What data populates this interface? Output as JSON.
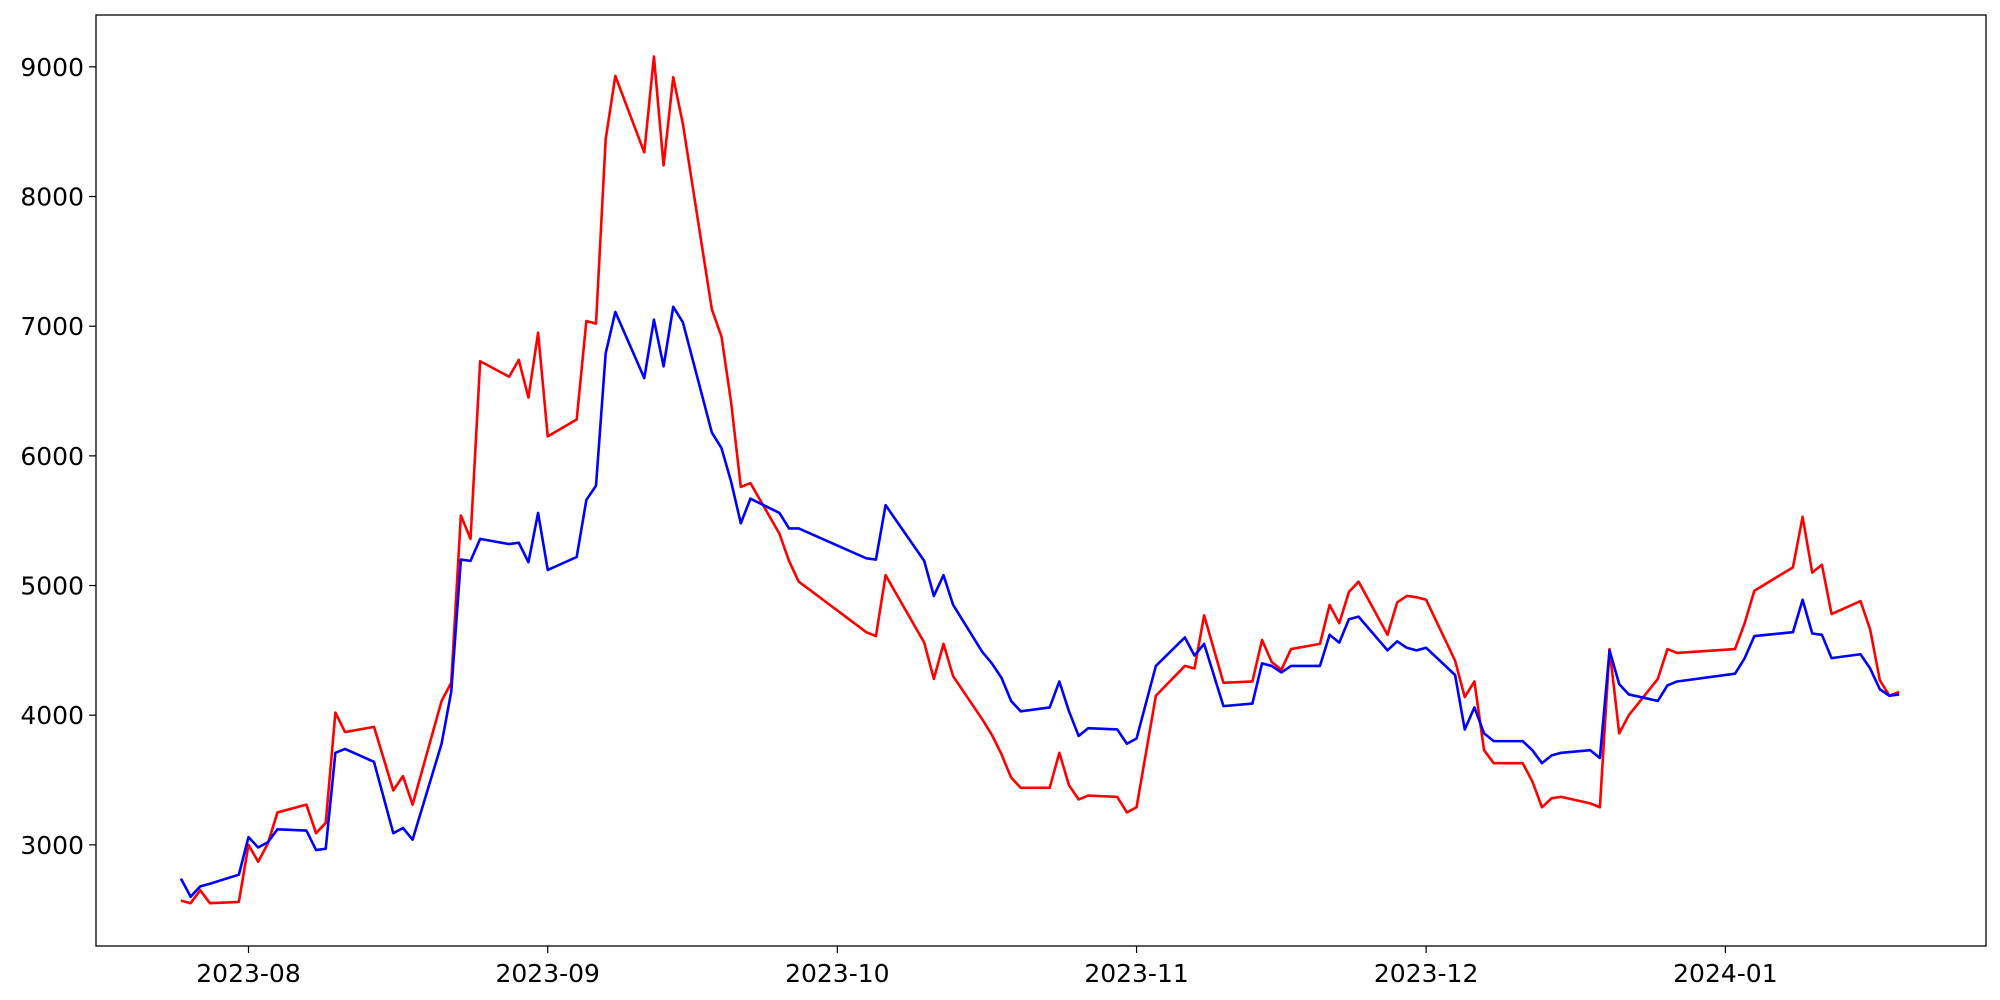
{
  "chart_data": {
    "type": "line",
    "x": [
      19563,
      19564,
      19565,
      19566,
      19569,
      19570,
      19571,
      19572,
      19573,
      19576,
      19577,
      19578,
      19579,
      19580,
      19583,
      19585,
      19586,
      19587,
      19590,
      19591,
      19592,
      19593,
      19594,
      19597,
      19598,
      19599,
      19600,
      19601,
      19604,
      19605,
      19606,
      19607,
      19608,
      19611,
      19612,
      19613,
      19614,
      19615,
      19618,
      19619,
      19620,
      19621,
      19622,
      19625,
      19626,
      19627,
      19634,
      19635,
      19636,
      19640,
      19641,
      19642,
      19643,
      19646,
      19647,
      19648,
      19649,
      19650,
      19653,
      19654,
      19655,
      19656,
      19657,
      19660,
      19661,
      19662,
      19664,
      19667,
      19668,
      19669,
      19671,
      19674,
      19675,
      19676,
      19677,
      19678,
      19681,
      19682,
      19683,
      19684,
      19685,
      19688,
      19689,
      19690,
      19691,
      19692,
      19695,
      19696,
      19697,
      19698,
      19699,
      19702,
      19703,
      19704,
      19705,
      19706,
      19709,
      19710,
      19711,
      19712,
      19713,
      19716,
      19717,
      19718,
      19724,
      19725,
      19726,
      19730,
      19731,
      19732,
      19733,
      19734,
      19737,
      19738,
      19739,
      19740,
      19741
    ],
    "series": [
      {
        "color": "#ff0000",
        "values": [
          2570,
          2550,
          2650,
          2550,
          2560,
          3000,
          2870,
          3010,
          3250,
          3310,
          3090,
          3170,
          4020,
          3870,
          3910,
          3420,
          3530,
          3310,
          4110,
          4250,
          5540,
          5360,
          6730,
          6610,
          6740,
          6450,
          6950,
          6150,
          6280,
          7040,
          7020,
          8440,
          8930,
          8340,
          9080,
          8240,
          8920,
          8560,
          7130,
          6920,
          6410,
          5760,
          5790,
          5400,
          5190,
          5030,
          4640,
          4610,
          5080,
          4560,
          4280,
          4550,
          4300,
          3970,
          3850,
          3700,
          3520,
          3440,
          3440,
          3710,
          3460,
          3350,
          3380,
          3370,
          3250,
          3290,
          4150,
          4380,
          4360,
          4770,
          4250,
          4260,
          4580,
          4410,
          4350,
          4510,
          4550,
          4850,
          4710,
          4950,
          5030,
          4620,
          4870,
          4920,
          4910,
          4890,
          4420,
          4140,
          4260,
          3730,
          3630,
          3630,
          3490,
          3290,
          3360,
          3370,
          3320,
          3290,
          4510,
          3860,
          4000,
          4280,
          4510,
          4480,
          4510,
          4710,
          4960,
          5140,
          5530,
          5100,
          5160,
          4780,
          4880,
          4660,
          4270,
          4150,
          4180
        ]
      },
      {
        "color": "#0000ff",
        "values": [
          2740,
          2600,
          2680,
          2700,
          2770,
          3060,
          2980,
          3020,
          3120,
          3110,
          2960,
          2970,
          3710,
          3740,
          3640,
          3090,
          3130,
          3040,
          3780,
          4180,
          5200,
          5190,
          5360,
          5320,
          5330,
          5180,
          5560,
          5120,
          5220,
          5660,
          5770,
          6790,
          7110,
          6600,
          7050,
          6690,
          7150,
          7030,
          6180,
          6060,
          5800,
          5480,
          5670,
          5560,
          5440,
          5440,
          5210,
          5200,
          5620,
          5190,
          4920,
          5080,
          4850,
          4490,
          4400,
          4290,
          4110,
          4030,
          4060,
          4260,
          4030,
          3840,
          3900,
          3890,
          3780,
          3820,
          4380,
          4600,
          4460,
          4550,
          4070,
          4090,
          4400,
          4380,
          4330,
          4380,
          4380,
          4620,
          4560,
          4740,
          4760,
          4500,
          4570,
          4520,
          4500,
          4520,
          4310,
          3890,
          4060,
          3860,
          3800,
          3800,
          3730,
          3630,
          3690,
          3710,
          3730,
          3670,
          4500,
          4240,
          4160,
          4110,
          4230,
          4260,
          4320,
          4440,
          4610,
          4640,
          4890,
          4630,
          4620,
          4440,
          4470,
          4360,
          4200,
          4150,
          4160
        ]
      }
    ],
    "xlim": [
      19554.2,
      19750
    ],
    "xticks": [
      {
        "value": 19570,
        "label": "2023-08"
      },
      {
        "value": 19601,
        "label": "2023-09"
      },
      {
        "value": 19631,
        "label": "2023-10"
      },
      {
        "value": 19662,
        "label": "2023-11"
      },
      {
        "value": 19692,
        "label": "2023-12"
      },
      {
        "value": 19723,
        "label": "2024-01"
      }
    ],
    "ylim": [
      2220,
      9400
    ],
    "yticks": [
      3000,
      4000,
      5000,
      6000,
      7000,
      8000,
      9000
    ]
  }
}
